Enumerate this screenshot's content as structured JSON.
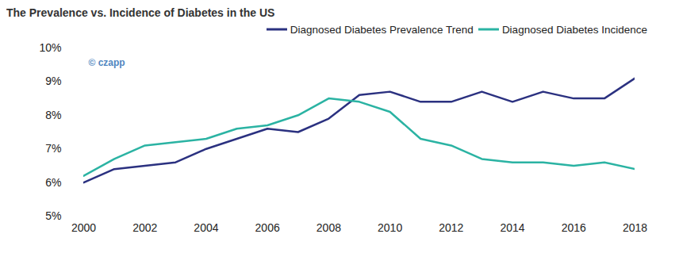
{
  "chart_data": {
    "type": "line",
    "title": "The Prevalence vs. Incidence of Diabetes in the US",
    "x": [
      2000,
      2001,
      2002,
      2003,
      2004,
      2005,
      2006,
      2007,
      2008,
      2009,
      2010,
      2011,
      2012,
      2013,
      2014,
      2015,
      2016,
      2017,
      2018
    ],
    "series": [
      {
        "name": "Diagnosed Diabetes Prevalence Trend",
        "color": "#2b3180",
        "values": [
          6.0,
          6.4,
          6.5,
          6.6,
          7.0,
          7.3,
          7.6,
          7.5,
          7.9,
          8.6,
          8.7,
          8.4,
          8.4,
          8.7,
          8.4,
          8.7,
          8.5,
          8.5,
          9.1
        ]
      },
      {
        "name": "Diagnosed Diabetes Incidence",
        "color": "#2bb3a3",
        "values": [
          6.2,
          6.7,
          7.1,
          7.2,
          7.3,
          7.6,
          7.7,
          8.0,
          8.5,
          8.4,
          8.1,
          7.3,
          7.1,
          6.7,
          6.6,
          6.6,
          6.5,
          6.6,
          6.4
        ]
      }
    ],
    "xlim": [
      2000,
      2018
    ],
    "xticks": [
      2000,
      2002,
      2004,
      2006,
      2008,
      2010,
      2012,
      2014,
      2016,
      2018
    ],
    "ylim": [
      5,
      10
    ],
    "yticks": [
      {
        "value": 5,
        "label": "5%"
      },
      {
        "value": 6,
        "label": "6%"
      },
      {
        "value": 7,
        "label": "7%"
      },
      {
        "value": 8,
        "label": "8%"
      },
      {
        "value": 9,
        "label": "9%"
      },
      {
        "value": 10,
        "label": "10%"
      }
    ],
    "annotations": [
      "© czapp"
    ],
    "legend": "top-right",
    "grid": false
  }
}
